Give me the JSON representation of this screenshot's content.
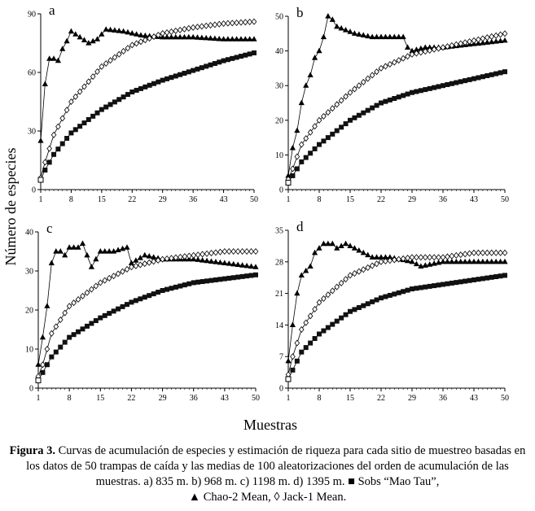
{
  "figure": {
    "ylabel": "Número de especies",
    "xlabel": "Muestras",
    "caption": {
      "bold": "Figura 3.",
      "text": " Curvas de acumulación de especies y estimación de riqueza para cada sitio de muestreo basadas en los datos de 50 trampas de caída y las medias de 100 aleatorizaciones del orden de acumulación de las muestras. a) 835 m. b) 968 m. c) 1198 m. d) 1395 m.",
      "legend": [
        {
          "marker": "■",
          "label": "Sobs “Mao Tau”,"
        },
        {
          "marker": "▲",
          "label": "Chao-2 Mean,"
        },
        {
          "marker": "◊",
          "label": "Jack-1 Mean."
        }
      ]
    }
  },
  "chart_data": [
    {
      "type": "line",
      "panel": "a",
      "x_ticks": [
        1,
        8,
        15,
        22,
        29,
        36,
        43,
        50
      ],
      "y_ticks": [
        0,
        30,
        60,
        90
      ],
      "ylim": [
        0,
        90
      ],
      "xlim": [
        1,
        50
      ],
      "series": [
        {
          "name": "Sobs “Mao Tau”",
          "marker": "square",
          "x": [
            1,
            2,
            4,
            8,
            15,
            22,
            29,
            36,
            43,
            50
          ],
          "y": [
            5,
            10,
            18,
            29,
            41,
            50,
            56,
            61,
            66,
            70
          ]
        },
        {
          "name": "Chao-2 Mean",
          "marker": "triangle",
          "x": [
            1,
            2,
            3,
            4,
            5,
            6,
            7,
            8,
            10,
            12,
            14,
            16,
            20,
            24,
            29,
            36,
            43,
            50
          ],
          "y": [
            25,
            54,
            67,
            67,
            66,
            72,
            76,
            81,
            78,
            75,
            77,
            82,
            81,
            79,
            78,
            78,
            77,
            77
          ]
        },
        {
          "name": "Jack-1 Mean",
          "marker": "diamond",
          "x": [
            1,
            2,
            4,
            8,
            15,
            22,
            29,
            36,
            43,
            50
          ],
          "y": [
            6,
            14,
            28,
            45,
            63,
            74,
            80,
            83,
            85,
            86
          ]
        }
      ]
    },
    {
      "type": "line",
      "panel": "b",
      "x_ticks": [
        1,
        8,
        15,
        22,
        29,
        36,
        43,
        50
      ],
      "y_ticks": [
        0,
        10,
        20,
        30,
        40,
        50
      ],
      "ylim": [
        0,
        50
      ],
      "xlim": [
        1,
        50
      ],
      "series": [
        {
          "name": "Sobs “Mao Tau”",
          "marker": "square",
          "x": [
            1,
            2,
            4,
            8,
            15,
            22,
            29,
            36,
            43,
            50
          ],
          "y": [
            2,
            4,
            8,
            13,
            20,
            25,
            28,
            30,
            32,
            34
          ]
        },
        {
          "name": "Chao-2 Mean",
          "marker": "triangle",
          "x": [
            1,
            2,
            3,
            4,
            5,
            6,
            7,
            8,
            9,
            10,
            11,
            12,
            14,
            16,
            20,
            24,
            27,
            28,
            29,
            32,
            36,
            43,
            50
          ],
          "y": [
            4,
            12,
            17,
            25,
            30,
            33,
            38,
            40,
            44,
            50,
            49,
            47,
            46,
            45,
            44,
            44,
            44,
            41,
            40,
            41,
            41,
            42,
            43
          ]
        },
        {
          "name": "Jack-1 Mean",
          "marker": "diamond",
          "x": [
            1,
            2,
            4,
            8,
            15,
            22,
            29,
            36,
            43,
            50
          ],
          "y": [
            3,
            6,
            13,
            20,
            28,
            35,
            39,
            41,
            43,
            45
          ]
        }
      ]
    },
    {
      "type": "line",
      "panel": "c",
      "x_ticks": [
        1,
        8,
        15,
        22,
        29,
        36,
        43,
        50
      ],
      "y_ticks": [
        0,
        10,
        20,
        30,
        40
      ],
      "ylim": [
        0,
        40
      ],
      "xlim": [
        1,
        50
      ],
      "series": [
        {
          "name": "Sobs “Mao Tau”",
          "marker": "square",
          "x": [
            1,
            2,
            4,
            8,
            15,
            22,
            29,
            36,
            43,
            50
          ],
          "y": [
            2,
            4,
            8,
            13,
            18,
            22,
            25,
            27,
            28,
            29
          ]
        },
        {
          "name": "Chao-2 Mean",
          "marker": "triangle",
          "x": [
            1,
            2,
            3,
            4,
            5,
            6,
            7,
            8,
            10,
            11,
            12,
            13,
            15,
            18,
            21,
            22,
            25,
            29,
            36,
            43,
            50
          ],
          "y": [
            6,
            13,
            21,
            32,
            35,
            35,
            34,
            36,
            36,
            37,
            34,
            31,
            35,
            35,
            36,
            32,
            34,
            33,
            33,
            32,
            31
          ]
        },
        {
          "name": "Jack-1 Mean",
          "marker": "diamond",
          "x": [
            1,
            2,
            4,
            8,
            15,
            22,
            29,
            36,
            43,
            50
          ],
          "y": [
            3,
            6,
            14,
            21,
            27,
            31,
            33,
            34,
            35,
            35
          ]
        }
      ]
    },
    {
      "type": "line",
      "panel": "d",
      "x_ticks": [
        1,
        8,
        15,
        22,
        29,
        36,
        43,
        50
      ],
      "y_ticks": [
        0,
        7,
        14,
        21,
        28,
        35
      ],
      "ylim": [
        0,
        35
      ],
      "xlim": [
        1,
        50
      ],
      "series": [
        {
          "name": "Sobs “Mao Tau”",
          "marker": "square",
          "x": [
            1,
            2,
            4,
            8,
            15,
            22,
            29,
            36,
            43,
            50
          ],
          "y": [
            2,
            4,
            8,
            12,
            17,
            20,
            22,
            23,
            24,
            25
          ]
        },
        {
          "name": "Chao-2 Mean",
          "marker": "triangle",
          "x": [
            1,
            2,
            3,
            4,
            5,
            6,
            7,
            8,
            9,
            10,
            11,
            12,
            14,
            16,
            20,
            24,
            29,
            31,
            36,
            43,
            50
          ],
          "y": [
            6,
            14,
            21,
            25,
            26,
            27,
            30,
            31,
            32,
            32,
            32,
            31,
            32,
            31,
            29,
            29,
            28,
            27,
            28,
            28,
            28
          ]
        },
        {
          "name": "Jack-1 Mean",
          "marker": "diamond",
          "x": [
            1,
            2,
            4,
            8,
            15,
            22,
            29,
            36,
            43,
            50
          ],
          "y": [
            3,
            7,
            13,
            19,
            25,
            28,
            29,
            29,
            30,
            30
          ]
        }
      ]
    }
  ]
}
